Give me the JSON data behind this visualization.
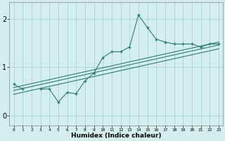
{
  "xlabel": "Humidex (Indice chaleur)",
  "x": [
    0,
    1,
    2,
    3,
    4,
    5,
    6,
    7,
    8,
    9,
    10,
    11,
    12,
    13,
    14,
    15,
    16,
    17,
    18,
    19,
    20,
    21,
    22,
    23
  ],
  "line1": [
    0.65,
    0.55,
    null,
    0.55,
    0.55,
    0.28,
    0.48,
    0.45,
    0.72,
    0.88,
    1.2,
    1.32,
    1.32,
    1.42,
    2.08,
    1.82,
    1.58,
    1.52,
    1.48,
    1.48,
    1.48,
    1.42,
    1.48,
    1.48
  ],
  "reg_lines": [
    {
      "x0": 0,
      "y0": 0.58,
      "x1": 23,
      "y1": 1.52
    },
    {
      "x0": 0,
      "y0": 0.52,
      "x1": 23,
      "y1": 1.46
    },
    {
      "x0": 0,
      "y0": 0.44,
      "x1": 23,
      "y1": 1.38
    }
  ],
  "color": "#2e7d72",
  "bg_color": "#d4eeee",
  "grid_color": "#aad4d4",
  "ylim": [
    -0.2,
    2.35
  ],
  "xlim": [
    -0.5,
    23.5
  ],
  "yticks": [
    0,
    1,
    2
  ],
  "xticks": [
    0,
    1,
    2,
    3,
    4,
    5,
    6,
    7,
    8,
    9,
    10,
    11,
    12,
    13,
    14,
    15,
    16,
    17,
    18,
    19,
    20,
    21,
    22,
    23
  ]
}
